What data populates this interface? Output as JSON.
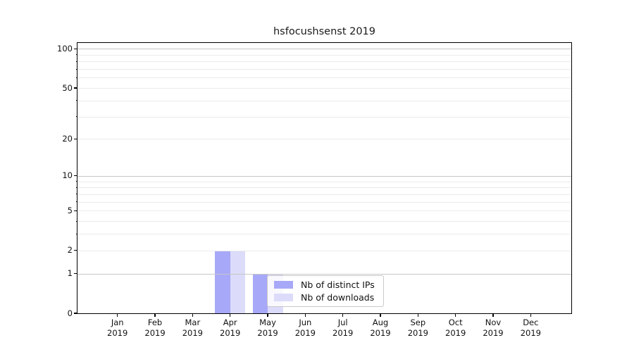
{
  "chart_data": {
    "type": "bar",
    "title": "hsfocushsenst 2019",
    "categories": [
      "Jan",
      "Feb",
      "Mar",
      "Apr",
      "May",
      "Jun",
      "Jul",
      "Aug",
      "Sep",
      "Oct",
      "Nov",
      "Dec"
    ],
    "year": "2019",
    "series": [
      {
        "name": "Nb of distinct IPs",
        "color": "#a8a8f8",
        "values": [
          0,
          0,
          0,
          2,
          1,
          0,
          0,
          0,
          0,
          0,
          0,
          0
        ]
      },
      {
        "name": "Nb of downloads",
        "color": "#dcdcfa",
        "values": [
          0,
          0,
          0,
          2,
          1,
          0,
          0,
          0,
          0,
          0,
          0,
          0
        ]
      }
    ],
    "yscale": "log1p",
    "ylim": [
      0,
      111
    ],
    "y_ticks": [
      0,
      1,
      2,
      5,
      10,
      20,
      50,
      100
    ],
    "grid_major": [
      1,
      10,
      100
    ],
    "grid_minor": [
      2,
      3,
      4,
      5,
      6,
      7,
      8,
      9,
      20,
      30,
      40,
      50,
      60,
      70,
      80,
      90
    ],
    "grid": "on",
    "legend_position": "inside-lower-middle",
    "colors": {
      "grid_major": "#c6c6c6",
      "grid_minor": "#ebebeb",
      "axis": "#000000",
      "background": "#ffffff"
    }
  }
}
